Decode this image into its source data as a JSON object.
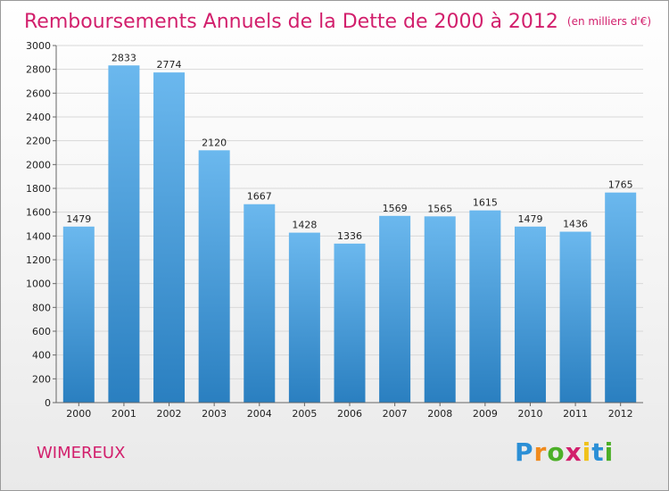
{
  "title": "Remboursements Annuels de la Dette de 2000 à 2012",
  "unit": "(en milliers d'€)",
  "city": "WIMEREUX",
  "logo": {
    "letters": [
      {
        "ch": "P",
        "color": "#2b8fd6"
      },
      {
        "ch": "r",
        "color": "#f08a1c"
      },
      {
        "ch": "o",
        "color": "#4caf27"
      },
      {
        "ch": "x",
        "color": "#d21f6c"
      },
      {
        "ch": "i",
        "color": "#f0c21c"
      },
      {
        "ch": "t",
        "color": "#2b8fd6"
      },
      {
        "ch": "i",
        "color": "#4caf27"
      }
    ]
  },
  "colors": {
    "bar_top": "#6bb8ee",
    "bar_bottom": "#2a7fc0",
    "accent": "#d21f6c"
  },
  "chart_data": {
    "type": "bar",
    "title": "Remboursements Annuels de la Dette de 2000 à 2012",
    "categories": [
      "2000",
      "2001",
      "2002",
      "2003",
      "2004",
      "2005",
      "2006",
      "2007",
      "2008",
      "2009",
      "2010",
      "2011",
      "2012"
    ],
    "values": [
      1479,
      2833,
      2774,
      2120,
      1667,
      1428,
      1336,
      1569,
      1565,
      1615,
      1479,
      1436,
      1765
    ],
    "ylim": [
      0,
      3000
    ],
    "yticks": [
      0,
      200,
      400,
      600,
      800,
      1000,
      1200,
      1400,
      1600,
      1800,
      2000,
      2200,
      2400,
      2600,
      2800,
      3000
    ],
    "grid": true
  }
}
